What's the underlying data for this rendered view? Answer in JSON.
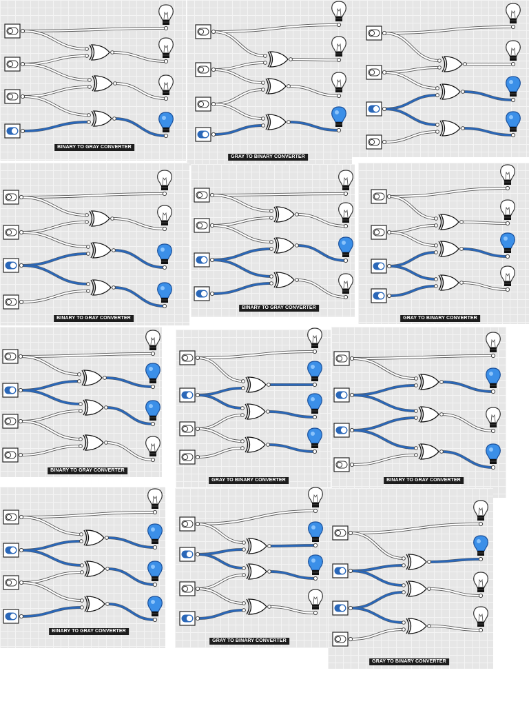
{
  "colors": {
    "active_wire": "#2a67b8",
    "inactive_wire": "#ffffff",
    "bulb_on": "#3b8fe8",
    "bulb_off": "#ffffff",
    "switch_on": "#2a67b8",
    "panel_bg": "#e6e6e6",
    "caption_bg": "#1d1d1d"
  },
  "panels": [
    {
      "label": "BINARY TO GRAY CONVERTER",
      "inputs": [
        "off",
        "off",
        "off",
        "on"
      ],
      "outputs": [
        "off",
        "off",
        "off",
        "on"
      ]
    },
    {
      "label": "GRAY TO BINARY CONVERTER",
      "inputs": [
        "off",
        "off",
        "off",
        "on"
      ],
      "outputs": [
        "off",
        "off",
        "off",
        "on"
      ]
    },
    {
      "label": "",
      "inputs": [
        "off",
        "off",
        "on",
        "off"
      ],
      "outputs": [
        "off",
        "off",
        "on",
        "on"
      ]
    },
    {
      "label": "BINARY TO GRAY CONVERTER",
      "inputs": [
        "off",
        "off",
        "on",
        "off"
      ],
      "outputs": [
        "off",
        "off",
        "on",
        "on"
      ]
    },
    {
      "label": "BINARY TO GRAY CONVERTER",
      "inputs": [
        "off",
        "off",
        "on",
        "on"
      ],
      "outputs": [
        "off",
        "off",
        "on",
        "off"
      ]
    },
    {
      "label": "GRAY TO BINARY CONVERTER",
      "inputs": [
        "off",
        "off",
        "on",
        "on"
      ],
      "outputs": [
        "off",
        "off",
        "on",
        "off"
      ]
    },
    {
      "label": "BINARY TO GRAY CONVERTER",
      "inputs": [
        "off",
        "on",
        "off",
        "off"
      ],
      "outputs": [
        "off",
        "on",
        "on",
        "off"
      ]
    },
    {
      "label": "GRAY TO BINARY CONVERTER",
      "inputs": [
        "off",
        "on",
        "off",
        "off"
      ],
      "outputs": [
        "off",
        "on",
        "on",
        "on"
      ]
    },
    {
      "label": "BINARY TO GRAY CONVERTER",
      "inputs": [
        "off",
        "on",
        "on",
        "off"
      ],
      "outputs": [
        "off",
        "on",
        "off",
        "on"
      ]
    },
    {
      "label": "BINARY TO GRAY CONVERTER",
      "inputs": [
        "off",
        "on",
        "off",
        "on"
      ],
      "outputs": [
        "off",
        "on",
        "on",
        "on"
      ]
    },
    {
      "label": "GRAY TO BINARY CONVERTER",
      "inputs": [
        "off",
        "on",
        "off",
        "on"
      ],
      "outputs": [
        "off",
        "on",
        "on",
        "off"
      ]
    },
    {
      "label": "GRAY TO BINARY CONVERTER",
      "inputs": [
        "off",
        "on",
        "on",
        "off"
      ],
      "outputs": [
        "off",
        "on",
        "off",
        "off"
      ]
    }
  ]
}
